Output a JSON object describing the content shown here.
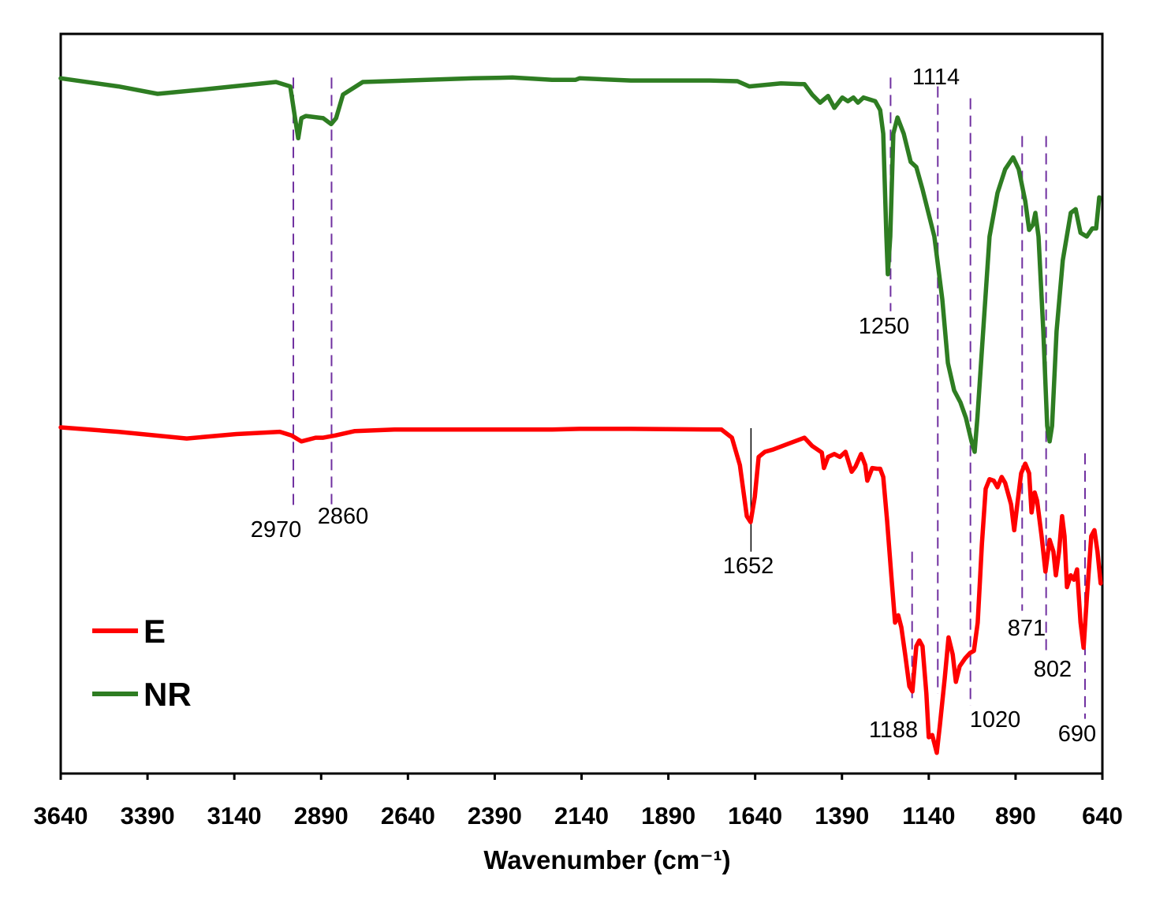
{
  "chart_data": {
    "type": "line",
    "title": "",
    "xlabel": "Wavenumber (cm⁻¹)",
    "ylabel": "",
    "xlim": [
      3640,
      640
    ],
    "x_reversed": true,
    "ylim": [
      0,
      100
    ],
    "y_units": "transmittance (a.u., offset)",
    "grid": false,
    "legend_position": "bottom-left",
    "x_ticks": [
      3640,
      3390,
      3140,
      2890,
      2640,
      2390,
      2140,
      1890,
      1640,
      1390,
      1140,
      890,
      640
    ],
    "series": [
      {
        "name": "E",
        "color": "#ff0000",
        "x": [
          3640,
          3474,
          3277,
          3134,
          3009,
          2975,
          2947,
          2906,
          2884,
          2850,
          2793,
          2679,
          2452,
          2225,
          2146,
          1998,
          1737,
          1707,
          1684,
          1664,
          1653,
          1641,
          1630,
          1612,
          1589,
          1544,
          1498,
          1476,
          1448,
          1442,
          1430,
          1412,
          1396,
          1380,
          1362,
          1351,
          1335,
          1323,
          1317,
          1303,
          1289,
          1280,
          1271,
          1260,
          1248,
          1237,
          1228,
          1219,
          1208,
          1196,
          1187,
          1176,
          1167,
          1158,
          1147,
          1140,
          1130,
          1117,
          1108,
          1094,
          1083,
          1071,
          1062,
          1051,
          1035,
          1021,
          1010,
          999,
          987,
          976,
          965,
          953,
          942,
          930,
          920,
          903,
          894,
          885,
          874,
          862,
          851,
          844,
          835,
          828,
          815,
          804,
          792,
          781,
          774,
          765,
          756,
          749,
          742,
          731,
          722,
          713,
          703,
          694,
          685,
          672,
          663,
          654,
          645
        ],
        "y": [
          46.8,
          46.2,
          45.3,
          45.9,
          46.2,
          45.7,
          44.9,
          45.4,
          45.4,
          45.7,
          46.3,
          46.5,
          46.5,
          46.5,
          46.6,
          46.6,
          46.5,
          45.4,
          41.7,
          34.8,
          34.0,
          37.4,
          42.8,
          43.5,
          43.8,
          44.6,
          45.4,
          44.3,
          43.4,
          41.3,
          42.8,
          43.2,
          42.8,
          43.5,
          40.8,
          41.5,
          43.2,
          41.7,
          39.6,
          41.3,
          41.2,
          41.2,
          40.1,
          34.2,
          26.8,
          20.4,
          21.4,
          19.8,
          16.1,
          11.8,
          11.1,
          17.2,
          18.0,
          17.2,
          10.8,
          4.9,
          5.2,
          2.8,
          6.5,
          12.9,
          18.4,
          16.1,
          12.4,
          14.5,
          15.6,
          16.3,
          16.6,
          20.4,
          31.0,
          38.5,
          39.8,
          39.6,
          38.7,
          40.1,
          39.3,
          36.4,
          32.9,
          36.4,
          40.6,
          41.9,
          40.6,
          35.3,
          38.0,
          36.9,
          32.1,
          27.3,
          31.6,
          30.0,
          26.8,
          30.0,
          34.8,
          32.1,
          25.2,
          26.8,
          26.2,
          27.6,
          20.4,
          17.0,
          23.6,
          32.1,
          32.9,
          30.0,
          25.7
        ]
      },
      {
        "name": "NR",
        "color": "#2e7d22",
        "x": [
          3640,
          3474,
          3361,
          3224,
          3020,
          2979,
          2965,
          2956,
          2947,
          2934,
          2884,
          2861,
          2847,
          2827,
          2770,
          2452,
          2339,
          2225,
          2157,
          2146,
          1998,
          1771,
          1691,
          1657,
          1566,
          1498,
          1476,
          1453,
          1430,
          1412,
          1389,
          1373,
          1357,
          1344,
          1328,
          1294,
          1280,
          1271,
          1262,
          1258,
          1251,
          1242,
          1230,
          1212,
          1192,
          1176,
          1158,
          1124,
          1101,
          1085,
          1067,
          1049,
          1033,
          1017,
          1008,
          1000,
          988,
          965,
          942,
          920,
          897,
          881,
          862,
          851,
          840,
          833,
          824,
          810,
          799,
          792,
          785,
          772,
          754,
          731,
          717,
          703,
          685,
          669,
          658,
          649
        ],
        "y": [
          94.0,
          92.9,
          91.9,
          92.5,
          93.5,
          92.9,
          88.6,
          85.9,
          88.6,
          88.9,
          88.6,
          87.8,
          88.6,
          91.8,
          93.5,
          94.0,
          94.1,
          93.8,
          93.8,
          94.0,
          93.7,
          93.7,
          93.6,
          92.9,
          93.3,
          93.2,
          91.8,
          90.7,
          91.6,
          90.0,
          91.4,
          90.9,
          91.4,
          90.7,
          91.4,
          90.9,
          89.7,
          86.5,
          72.6,
          67.5,
          72.6,
          86.5,
          88.7,
          86.5,
          82.7,
          82.0,
          79.0,
          72.6,
          64.1,
          55.5,
          51.8,
          50.2,
          48.1,
          44.9,
          43.5,
          48.1,
          56.6,
          72.6,
          78.5,
          81.7,
          83.3,
          81.7,
          77.4,
          73.5,
          74.2,
          75.8,
          72.6,
          59.8,
          47.0,
          44.9,
          47.0,
          59.8,
          69.4,
          75.8,
          76.3,
          73.1,
          72.6,
          73.7,
          73.7,
          77.9
        ]
      }
    ],
    "annotations": [
      {
        "label": "2970",
        "wavenumber": 2970,
        "y_range": [
          35.8,
          94.1
        ],
        "style": "dashed",
        "color": "#7030a0"
      },
      {
        "label": "2860",
        "wavenumber": 2860,
        "y_range": [
          36.4,
          94.1
        ],
        "style": "dashed",
        "color": "#7030a0"
      },
      {
        "label": "1652",
        "wavenumber": 1652,
        "y_range": [
          30.0,
          46.7
        ],
        "style": "solid",
        "color": "#000000"
      },
      {
        "label": "1250",
        "wavenumber": 1250,
        "y_range": [
          62.5,
          94.1
        ],
        "style": "dashed",
        "color": "#7030a0"
      },
      {
        "label": "1114",
        "wavenumber": 1114,
        "y_range": [
          10.8,
          92.9
        ],
        "style": "dashed",
        "color": "#7030a0"
      },
      {
        "label": "1020",
        "wavenumber": 1020,
        "y_range": [
          9.2,
          91.3
        ],
        "style": "dashed",
        "color": "#7030a0"
      },
      {
        "label": "871",
        "wavenumber": 871,
        "y_range": [
          22.0,
          86.2
        ],
        "style": "dashed",
        "color": "#7030a0"
      },
      {
        "label": "802",
        "wavenumber": 802,
        "y_range": [
          16.1,
          86.2
        ],
        "style": "dashed",
        "color": "#7030a0"
      },
      {
        "label": "1188",
        "wavenumber": 1188,
        "y_range": [
          10.2,
          30.0
        ],
        "style": "dashed",
        "color": "#7030a0"
      },
      {
        "label": "690",
        "wavenumber": 690,
        "y_range": [
          7.4,
          43.3
        ],
        "style": "dashed",
        "color": "#7030a0"
      }
    ]
  }
}
